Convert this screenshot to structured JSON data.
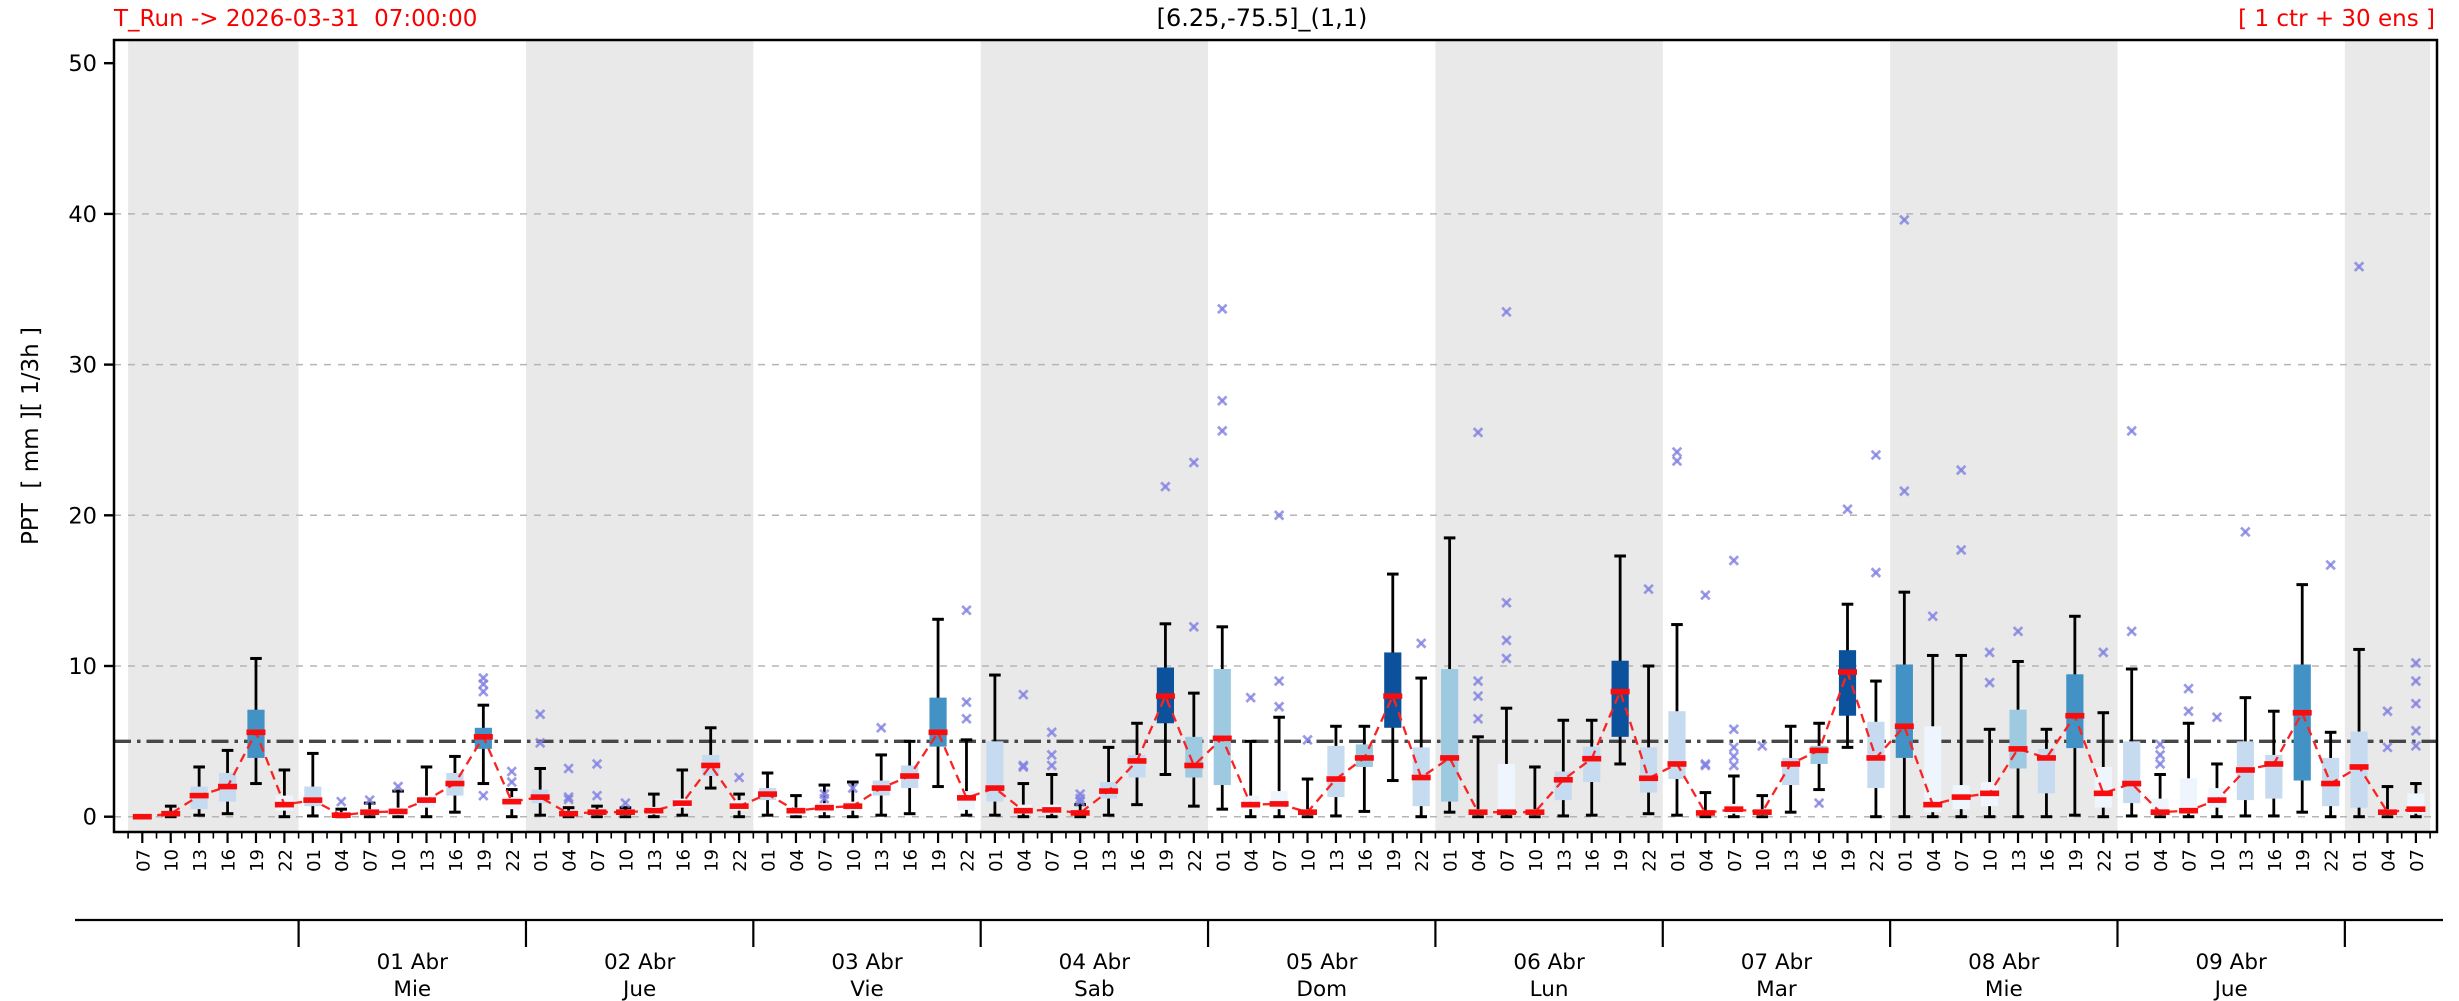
{
  "header": {
    "run_label": "T_Run -> 2026-03-31  07:00:00",
    "title": "[6.25,-75.5]_(1,1)",
    "ensemble_label": "[ 1 ctr + 30 ens ]"
  },
  "colors": {
    "annotation_red": "#f60000",
    "median_red": "#f70d0d",
    "ctr_line_red": "#fb2222",
    "box_pale": "#eff5fc",
    "box_light": "#c6dbef",
    "box_medium": "#9ecae1",
    "box_dark": "#4292c6",
    "box_navy": "#0b519c",
    "outlier_marker": "#8282e2",
    "day_band_gray": "#e9e9e9",
    "grid_gray": "#b5b5b5",
    "threshold_gray": "#474747",
    "axis_black": "#000000"
  },
  "chart_data": {
    "type": "boxplot-timeseries",
    "title": "[6.25,-75.5]_(1,1)",
    "ylabel": "PPT  [ mm ][ 1/3h ]",
    "ylim": [
      -1.0,
      51.5
    ],
    "yticks": [
      0,
      10,
      20,
      30,
      40,
      50
    ],
    "grid": "dashed horizontal at 0,10,20,30,40",
    "threshold_line": 5,
    "legend_position": "none",
    "x_interval_hours": 3,
    "series_note": "red dashed line = control run / median trace; boxes = 30-member ensemble IQR; whiskers = min/max; x markers = outliers",
    "days": [
      {
        "label": "",
        "weekday": "",
        "from": 0,
        "to": 5,
        "shaded": true
      },
      {
        "label": "01 Abr",
        "weekday": "Mie",
        "from": 6,
        "to": 13,
        "shaded": false
      },
      {
        "label": "02 Abr",
        "weekday": "Jue",
        "from": 14,
        "to": 21,
        "shaded": true
      },
      {
        "label": "03 Abr",
        "weekday": "Vie",
        "from": 22,
        "to": 29,
        "shaded": false
      },
      {
        "label": "04 Abr",
        "weekday": "Sab",
        "from": 30,
        "to": 37,
        "shaded": true
      },
      {
        "label": "05 Abr",
        "weekday": "Dom",
        "from": 38,
        "to": 45,
        "shaded": false
      },
      {
        "label": "06 Abr",
        "weekday": "Lun",
        "from": 46,
        "to": 53,
        "shaded": true
      },
      {
        "label": "07 Abr",
        "weekday": "Mar",
        "from": 54,
        "to": 61,
        "shaded": false
      },
      {
        "label": "08 Abr",
        "weekday": "Mie",
        "from": 62,
        "to": 69,
        "shaded": true
      },
      {
        "label": "09 Abr",
        "weekday": "Jue",
        "from": 70,
        "to": 77,
        "shaded": false
      },
      {
        "label": "",
        "weekday": "",
        "from": 78,
        "to": 80,
        "shaded": true
      }
    ],
    "boxes": {
      "columns": [
        "hour",
        "median",
        "q1",
        "q3",
        "whisker_lo",
        "whisker_hi",
        "color_class",
        "outliers"
      ],
      "rows": [
        [
          "07",
          0.0,
          0.0,
          0.0,
          0.0,
          0.0,
          "w",
          []
        ],
        [
          "10",
          0.2,
          0.05,
          0.35,
          0.0,
          0.7,
          "w",
          []
        ],
        [
          "13",
          1.4,
          0.5,
          2.0,
          0.1,
          3.3,
          "l",
          []
        ],
        [
          "16",
          2.0,
          1.0,
          2.9,
          0.2,
          4.4,
          "l",
          []
        ],
        [
          "19",
          5.6,
          3.9,
          7.1,
          2.2,
          10.5,
          "d",
          []
        ],
        [
          "22",
          0.8,
          0.4,
          1.4,
          0.0,
          3.1,
          "w",
          []
        ],
        [
          "01",
          1.1,
          0.7,
          2.0,
          0.05,
          4.2,
          "l",
          []
        ],
        [
          "04",
          0.1,
          0.0,
          0.3,
          0.0,
          0.5,
          "w",
          [
            1.0
          ]
        ],
        [
          "07",
          0.3,
          0.1,
          0.5,
          0.0,
          0.9,
          "w",
          [
            1.1
          ]
        ],
        [
          "10",
          0.35,
          0.1,
          0.6,
          0.0,
          1.7,
          "w",
          [
            2.0
          ]
        ],
        [
          "13",
          1.1,
          0.6,
          1.4,
          0.0,
          3.3,
          "w",
          []
        ],
        [
          "16",
          2.2,
          1.4,
          2.9,
          0.3,
          4.0,
          "l",
          []
        ],
        [
          "19",
          5.3,
          4.5,
          5.9,
          2.2,
          7.4,
          "d",
          [
            8.3,
            8.8,
            9.2,
            1.4
          ]
        ],
        [
          "22",
          1.0,
          0.5,
          1.3,
          0.0,
          1.8,
          "w",
          [
            2.3,
            3.0
          ]
        ],
        [
          "01",
          1.3,
          0.9,
          1.8,
          0.1,
          3.2,
          "l",
          [
            4.9,
            6.8
          ]
        ],
        [
          "04",
          0.2,
          0.05,
          0.4,
          0.0,
          0.6,
          "w",
          [
            1.15,
            1.3,
            3.2
          ]
        ],
        [
          "07",
          0.3,
          0.1,
          0.5,
          0.0,
          0.7,
          "w",
          [
            1.4,
            3.5
          ]
        ],
        [
          "10",
          0.3,
          0.1,
          0.4,
          0.0,
          0.6,
          "w",
          [
            0.9
          ]
        ],
        [
          "13",
          0.4,
          0.15,
          0.65,
          0.0,
          1.5,
          "w",
          []
        ],
        [
          "16",
          0.9,
          0.6,
          1.2,
          0.1,
          3.1,
          "w",
          []
        ],
        [
          "19",
          3.4,
          2.7,
          4.1,
          1.9,
          5.9,
          "l",
          []
        ],
        [
          "22",
          0.7,
          0.4,
          1.1,
          0.0,
          1.5,
          "w",
          [
            2.6
          ]
        ],
        [
          "01",
          1.5,
          1.1,
          1.9,
          0.1,
          2.9,
          "l",
          []
        ],
        [
          "04",
          0.4,
          0.1,
          0.6,
          0.0,
          1.4,
          "w",
          []
        ],
        [
          "07",
          0.6,
          0.3,
          0.9,
          0.0,
          2.1,
          "w",
          [
            1.2,
            1.5
          ]
        ],
        [
          "10",
          0.7,
          0.4,
          1.0,
          0.0,
          2.3,
          "w",
          [
            1.9
          ]
        ],
        [
          "13",
          1.9,
          1.4,
          2.4,
          0.1,
          4.1,
          "l",
          [
            5.9
          ]
        ],
        [
          "16",
          2.7,
          1.9,
          3.4,
          0.2,
          5.0,
          "l",
          []
        ],
        [
          "19",
          5.6,
          4.65,
          7.9,
          2.0,
          13.1,
          "d",
          []
        ],
        [
          "22",
          1.25,
          0.45,
          1.7,
          0.1,
          5.1,
          "w",
          [
            6.5,
            7.6,
            13.7
          ]
        ],
        [
          "01",
          1.9,
          1.0,
          5.0,
          0.1,
          9.4,
          "l",
          []
        ],
        [
          "04",
          0.4,
          0.2,
          0.8,
          0.0,
          2.2,
          "w",
          [
            3.3,
            3.4,
            8.1
          ]
        ],
        [
          "07",
          0.45,
          0.2,
          0.8,
          0.0,
          2.8,
          "w",
          [
            3.4,
            4.1,
            5.6
          ]
        ],
        [
          "10",
          0.25,
          0.1,
          0.4,
          0.0,
          0.8,
          "w",
          [
            1.0,
            1.2,
            1.5
          ]
        ],
        [
          "13",
          1.7,
          1.2,
          2.3,
          0.1,
          4.6,
          "l",
          []
        ],
        [
          "16",
          3.7,
          2.6,
          4.1,
          0.8,
          6.2,
          "l",
          []
        ],
        [
          "19",
          8.0,
          6.2,
          9.9,
          2.8,
          12.8,
          "n",
          [
            21.9
          ]
        ],
        [
          "22",
          3.4,
          2.6,
          5.3,
          0.7,
          8.2,
          "m",
          [
            12.6,
            23.5
          ]
        ],
        [
          "01",
          5.2,
          2.1,
          9.8,
          0.5,
          12.6,
          "m",
          [
            25.6,
            27.6,
            33.7
          ]
        ],
        [
          "04",
          0.8,
          0.5,
          1.4,
          0.0,
          5.0,
          "w",
          [
            7.9
          ]
        ],
        [
          "07",
          0.85,
          0.5,
          1.7,
          0.0,
          6.6,
          "w",
          [
            7.3,
            9.0,
            20.0
          ]
        ],
        [
          "10",
          0.3,
          0.1,
          0.5,
          0.0,
          2.5,
          "w",
          [
            5.1
          ]
        ],
        [
          "13",
          2.5,
          1.3,
          4.7,
          0.05,
          6.0,
          "l",
          []
        ],
        [
          "16",
          3.9,
          3.3,
          4.8,
          0.35,
          6.0,
          "m",
          []
        ],
        [
          "19",
          8.0,
          5.9,
          10.9,
          2.4,
          16.1,
          "n",
          []
        ],
        [
          "22",
          2.6,
          0.7,
          4.6,
          0.0,
          9.2,
          "l",
          [
            11.5
          ]
        ],
        [
          "01",
          3.9,
          1.0,
          9.8,
          0.3,
          18.5,
          "m",
          []
        ],
        [
          "04",
          0.3,
          0.1,
          0.5,
          0.0,
          5.3,
          "w",
          [
            6.5,
            8.0,
            9.0,
            25.5
          ]
        ],
        [
          "07",
          0.3,
          0.2,
          3.5,
          0.0,
          7.2,
          "w",
          [
            10.5,
            11.7,
            14.2,
            33.5
          ]
        ],
        [
          "10",
          0.3,
          0.1,
          0.5,
          0.0,
          3.3,
          "w",
          []
        ],
        [
          "13",
          2.45,
          1.1,
          3.0,
          0.05,
          6.4,
          "l",
          []
        ],
        [
          "16",
          3.85,
          2.3,
          4.65,
          0.1,
          6.4,
          "l",
          []
        ],
        [
          "19",
          8.3,
          5.3,
          10.35,
          3.5,
          17.3,
          "n",
          []
        ],
        [
          "22",
          2.55,
          1.6,
          4.6,
          0.2,
          10.0,
          "l",
          [
            15.1
          ]
        ],
        [
          "01",
          3.5,
          2.5,
          7.0,
          0.1,
          12.75,
          "l",
          [
            23.6,
            24.2
          ]
        ],
        [
          "04",
          0.25,
          0.1,
          0.4,
          0.0,
          1.6,
          "w",
          [
            3.4,
            3.5,
            14.7
          ]
        ],
        [
          "07",
          0.5,
          0.2,
          0.85,
          0.0,
          2.7,
          "w",
          [
            3.4,
            4.0,
            4.6,
            5.8,
            17.0
          ]
        ],
        [
          "10",
          0.3,
          0.1,
          0.5,
          0.0,
          1.4,
          "w",
          [
            4.7
          ]
        ],
        [
          "13",
          3.5,
          2.1,
          3.9,
          0.3,
          6.0,
          "l",
          []
        ],
        [
          "16",
          4.4,
          3.5,
          4.7,
          1.8,
          6.2,
          "m",
          [
            0.9
          ]
        ],
        [
          "19",
          9.6,
          6.7,
          11.05,
          4.6,
          14.1,
          "n",
          [
            20.4
          ]
        ],
        [
          "22",
          3.9,
          1.9,
          6.3,
          0.0,
          9.0,
          "l",
          [
            16.2,
            24.0
          ]
        ],
        [
          "01",
          6.0,
          3.9,
          10.1,
          0.0,
          14.9,
          "d",
          [
            21.6,
            39.6
          ]
        ],
        [
          "04",
          0.8,
          0.3,
          6.0,
          0.0,
          10.7,
          "w",
          [
            13.3
          ]
        ],
        [
          "07",
          1.3,
          0.5,
          2.1,
          0.0,
          10.7,
          "w",
          [
            17.7,
            23.0
          ]
        ],
        [
          "10",
          1.55,
          0.7,
          2.3,
          0.0,
          5.8,
          "w",
          [
            8.9,
            10.9
          ]
        ],
        [
          "13",
          4.5,
          3.2,
          7.1,
          0.0,
          10.3,
          "m",
          [
            12.3
          ]
        ],
        [
          "16",
          3.9,
          1.55,
          4.5,
          0.0,
          5.8,
          "l",
          []
        ],
        [
          "19",
          6.7,
          4.55,
          9.45,
          0.1,
          13.3,
          "d",
          []
        ],
        [
          "22",
          1.55,
          0.6,
          3.3,
          0.0,
          6.9,
          "w",
          [
            10.9
          ]
        ],
        [
          "01",
          2.2,
          0.9,
          5.0,
          0.05,
          9.8,
          "l",
          [
            12.3,
            25.6
          ]
        ],
        [
          "04",
          0.3,
          0.1,
          1.2,
          0.0,
          2.8,
          "w",
          [
            3.5,
            4.1,
            4.8
          ]
        ],
        [
          "07",
          0.4,
          0.2,
          2.55,
          0.0,
          6.2,
          "w",
          [
            7.0,
            8.5
          ]
        ],
        [
          "10",
          1.1,
          0.6,
          1.9,
          0.0,
          3.5,
          "w",
          [
            6.6
          ]
        ],
        [
          "13",
          3.1,
          1.1,
          5.0,
          0.05,
          7.9,
          "l",
          [
            18.9
          ]
        ],
        [
          "16",
          3.5,
          1.2,
          4.1,
          0.05,
          7.0,
          "l",
          []
        ],
        [
          "19",
          6.9,
          2.4,
          10.1,
          0.3,
          15.4,
          "d",
          []
        ],
        [
          "22",
          2.2,
          0.7,
          3.9,
          0.0,
          5.6,
          "l",
          [
            16.7
          ]
        ],
        [
          "01",
          3.3,
          0.6,
          5.65,
          0.0,
          11.1,
          "l",
          [
            36.5
          ]
        ],
        [
          "04",
          0.3,
          0.1,
          0.5,
          0.0,
          2.0,
          "w",
          [
            4.6,
            7.0
          ]
        ],
        [
          "07",
          0.5,
          0.2,
          1.55,
          0.0,
          2.2,
          "w",
          [
            4.7,
            5.7,
            7.5,
            9.0,
            10.2
          ]
        ]
      ]
    }
  }
}
